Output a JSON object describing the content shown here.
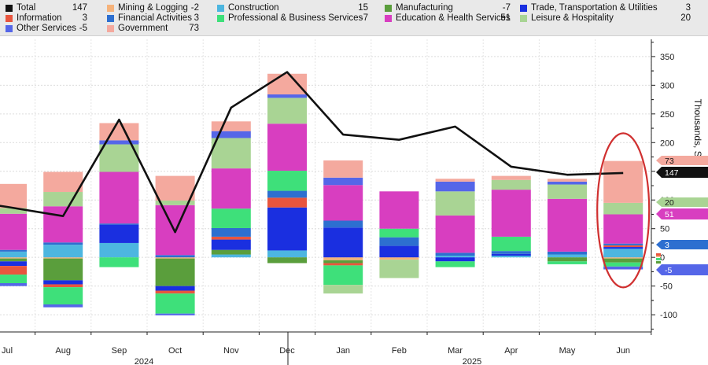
{
  "legend": [
    {
      "name": "Total",
      "value": "147",
      "color": "#111111"
    },
    {
      "name": "Mining & Logging",
      "value": "-2",
      "color": "#f5b27a"
    },
    {
      "name": "Construction",
      "value": "15",
      "color": "#4db6e0"
    },
    {
      "name": "Manufacturing",
      "value": "-7",
      "color": "#5a9e3c"
    },
    {
      "name": "Trade, Transportation & Utilities",
      "value": "3",
      "color": "#1a2fe0"
    },
    {
      "name": "Information",
      "value": "3",
      "color": "#e8553e"
    },
    {
      "name": "Financial Activities",
      "value": "3",
      "color": "#2d6fd0"
    },
    {
      "name": "Professional & Business Services",
      "value": "-7",
      "color": "#3ee07a"
    },
    {
      "name": "Education & Health Services",
      "value": "51",
      "color": "#d83ec0"
    },
    {
      "name": "Leisure & Hospitality",
      "value": "20",
      "color": "#a9d494"
    },
    {
      "name": "Other Services",
      "value": "-5",
      "color": "#5566e8"
    },
    {
      "name": "Government",
      "value": "73",
      "color": "#f4a99e"
    }
  ],
  "axis": {
    "ylabel": "Thousands, SA",
    "ticks": [
      "350",
      "300",
      "250",
      "200",
      "150",
      "100",
      "50",
      "0",
      "-50",
      "-100"
    ],
    "years": [
      "2024",
      "2025"
    ]
  },
  "tags": [
    {
      "label": "73",
      "value": 73,
      "bg": "#f4a99e",
      "fg": "#111111"
    },
    {
      "label": "147",
      "value": 147,
      "bg": "#111111",
      "fg": "#ffffff"
    },
    {
      "label": "20",
      "value": 20,
      "bg": "#a9d494",
      "fg": "#111111"
    },
    {
      "label": "51",
      "value": 51,
      "bg": "#d83ec0",
      "fg": "#ffffff"
    },
    {
      "label": "3",
      "value": 3,
      "bg": "#2d6fd0",
      "fg": "#ffffff"
    },
    {
      "label": "-5",
      "value": -5,
      "bg": "#5566e8",
      "fg": "#ffffff"
    }
  ],
  "chart_data": {
    "type": "bar",
    "stacked": true,
    "categories": [
      "Jul",
      "Aug",
      "Sep",
      "Oct",
      "Nov",
      "Dec",
      "Jan",
      "Feb",
      "Mar",
      "Apr",
      "May",
      "Jun"
    ],
    "ylim": [
      -130,
      380
    ],
    "ylabel": "Thousands, SA",
    "grid": true,
    "legend_position": "top",
    "series": [
      {
        "name": "Mining & Logging",
        "color": "#f5b27a",
        "values": [
          -2,
          -2,
          0,
          -2,
          0,
          0,
          -5,
          -4,
          0,
          0,
          0,
          -2
        ]
      },
      {
        "name": "Construction",
        "color": "#4db6e0",
        "values": [
          10,
          22,
          25,
          0,
          5,
          12,
          0,
          0,
          3,
          3,
          5,
          15
        ]
      },
      {
        "name": "Manufacturing",
        "color": "#5a9e3c",
        "values": [
          -5,
          -38,
          0,
          -48,
          8,
          -10,
          -5,
          0,
          0,
          0,
          -7,
          -7
        ]
      },
      {
        "name": "Trade, Transportation & Utilities",
        "color": "#1a2fe0",
        "values": [
          -8,
          -7,
          32,
          -8,
          18,
          75,
          52,
          20,
          -7,
          3,
          0,
          3
        ]
      },
      {
        "name": "Information",
        "color": "#e8553e",
        "values": [
          -15,
          -5,
          0,
          -5,
          5,
          17,
          -4,
          0,
          0,
          0,
          0,
          3
        ]
      },
      {
        "name": "Financial Activities",
        "color": "#2d6fd0",
        "values": [
          3,
          4,
          2,
          4,
          15,
          12,
          12,
          15,
          5,
          5,
          5,
          3
        ]
      },
      {
        "name": "Professional & Business Services",
        "color": "#3ee07a",
        "values": [
          -15,
          -30,
          -17,
          -35,
          34,
          35,
          -34,
          15,
          -10,
          25,
          -5,
          -7
        ]
      },
      {
        "name": "Education & Health Services",
        "color": "#d83ec0",
        "values": [
          63,
          63,
          90,
          87,
          70,
          82,
          62,
          65,
          65,
          82,
          92,
          51
        ]
      },
      {
        "name": "Leisure & Hospitality",
        "color": "#a9d494",
        "values": [
          10,
          25,
          48,
          8,
          53,
          45,
          -15,
          -32,
          42,
          17,
          25,
          20
        ]
      },
      {
        "name": "Other Services",
        "color": "#5566e8",
        "values": [
          -5,
          -5,
          7,
          -3,
          12,
          6,
          13,
          0,
          17,
          0,
          5,
          -5
        ]
      },
      {
        "name": "Government",
        "color": "#f4a99e",
        "values": [
          42,
          35,
          30,
          43,
          17,
          36,
          30,
          0,
          5,
          7,
          5,
          73
        ]
      }
    ],
    "total": {
      "name": "Total",
      "color": "#111111",
      "values": [
        88,
        72,
        240,
        44,
        261,
        323,
        214,
        205,
        228,
        158,
        144,
        147
      ]
    },
    "highlight": {
      "category": "Jun",
      "color": "#d03030"
    }
  }
}
